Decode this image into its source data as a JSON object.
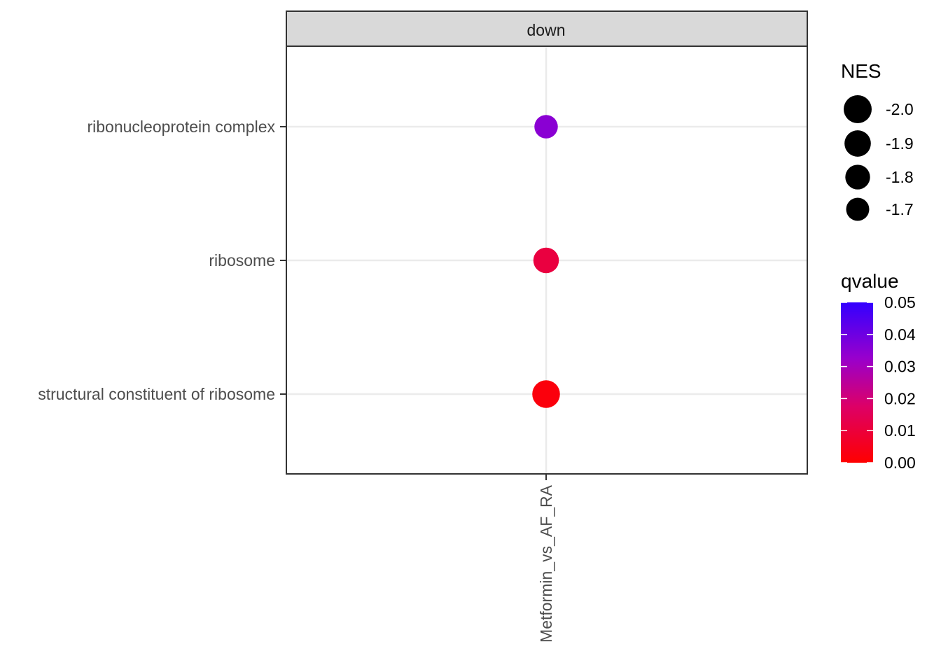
{
  "chart_data": {
    "type": "scatter",
    "facet": "down",
    "categories": [
      "structural constituent of ribosome",
      "ribosome",
      "ribonucleoprotein complex"
    ],
    "x_categories": [
      "Metformin_vs_AF_RA"
    ],
    "points": [
      {
        "x": "Metformin_vs_AF_RA",
        "y": "ribonucleoprotein complex",
        "NES": -1.72,
        "qvalue": 0.035
      },
      {
        "x": "Metformin_vs_AF_RA",
        "y": "ribosome",
        "NES": -1.85,
        "qvalue": 0.011
      },
      {
        "x": "Metformin_vs_AF_RA",
        "y": "structural constituent of ribosome",
        "NES": -1.98,
        "qvalue": 0.002
      }
    ],
    "size_legend": {
      "title": "NES",
      "labels": [
        "-2.0",
        "-1.9",
        "-1.8",
        "-1.7"
      ],
      "values": [
        -2.0,
        -1.9,
        -1.8,
        -1.7
      ]
    },
    "color_legend": {
      "title": "qvalue",
      "labels": [
        "0.05",
        "0.04",
        "0.03",
        "0.02",
        "0.01",
        "0.00"
      ],
      "values": [
        0.05,
        0.04,
        0.03,
        0.02,
        0.01,
        0.0
      ],
      "low_color": "#FF0000",
      "high_color": "#0000FF"
    },
    "grid": true
  }
}
